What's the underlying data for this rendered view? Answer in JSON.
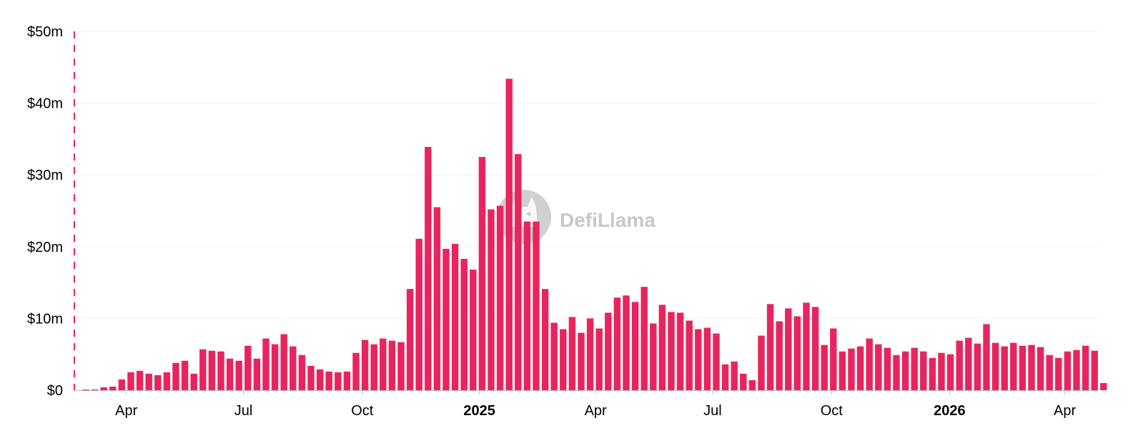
{
  "chart_data": {
    "type": "bar",
    "title": "",
    "xlabel": "",
    "ylabel": "",
    "ylim": [
      0,
      50
    ],
    "y_ticks": [
      {
        "value": 0,
        "label": "$0"
      },
      {
        "value": 10,
        "label": "$10m"
      },
      {
        "value": 20,
        "label": "$20m"
      },
      {
        "value": 30,
        "label": "$30m"
      },
      {
        "value": 40,
        "label": "$40m"
      },
      {
        "value": 50,
        "label": "$50m"
      }
    ],
    "x_ticks": [
      {
        "label": "Apr",
        "bold": false,
        "index": 4.5
      },
      {
        "label": "Jul",
        "bold": false,
        "index": 17.5
      },
      {
        "label": "Oct",
        "bold": false,
        "index": 30.7
      },
      {
        "label": "2025",
        "bold": true,
        "index": 43.7
      },
      {
        "label": "Apr",
        "bold": false,
        "index": 56.6
      },
      {
        "label": "Jul",
        "bold": false,
        "index": 69.6
      },
      {
        "label": "Oct",
        "bold": false,
        "index": 82.8
      },
      {
        "label": "2026",
        "bold": true,
        "index": 95.9
      },
      {
        "label": "Apr",
        "bold": false,
        "index": 108.7
      }
    ],
    "grid": true,
    "legend": "none",
    "bar_color": "#e8245e",
    "marker_color": "#e8245e",
    "values": [
      0.1,
      0.1,
      0.4,
      0.5,
      1.5,
      2.5,
      2.7,
      2.3,
      2.1,
      2.5,
      3.8,
      4.1,
      2.3,
      5.7,
      5.5,
      5.4,
      4.4,
      4.1,
      6.2,
      4.4,
      7.2,
      6.4,
      7.8,
      6.1,
      4.9,
      3.4,
      2.9,
      2.6,
      2.5,
      2.6,
      5.2,
      7.0,
      6.4,
      7.2,
      6.9,
      6.7,
      14.1,
      21.1,
      33.9,
      25.5,
      19.7,
      20.4,
      18.3,
      16.8,
      32.5,
      25.2,
      25.7,
      43.4,
      32.9,
      23.5,
      23.5,
      14.1,
      9.4,
      8.5,
      10.2,
      8.0,
      10.0,
      8.6,
      10.8,
      12.9,
      13.2,
      12.3,
      14.4,
      9.3,
      11.9,
      10.9,
      10.8,
      9.7,
      8.5,
      8.7,
      7.9,
      3.6,
      4.0,
      2.3,
      1.4,
      7.6,
      12.0,
      9.6,
      11.4,
      10.3,
      12.2,
      11.6,
      6.3,
      8.6,
      5.4,
      5.8,
      6.1,
      7.2,
      6.4,
      5.9,
      4.9,
      5.4,
      5.9,
      5.4,
      4.5,
      5.2,
      5.0,
      6.9,
      7.3,
      6.5,
      9.2,
      6.6,
      6.1,
      6.6,
      6.2,
      6.3,
      6.0,
      4.9,
      4.5,
      5.4,
      5.6,
      6.2,
      5.5,
      1.0
    ]
  },
  "watermark": {
    "text": "DefiLlama",
    "icon": "llama-logo-icon"
  }
}
